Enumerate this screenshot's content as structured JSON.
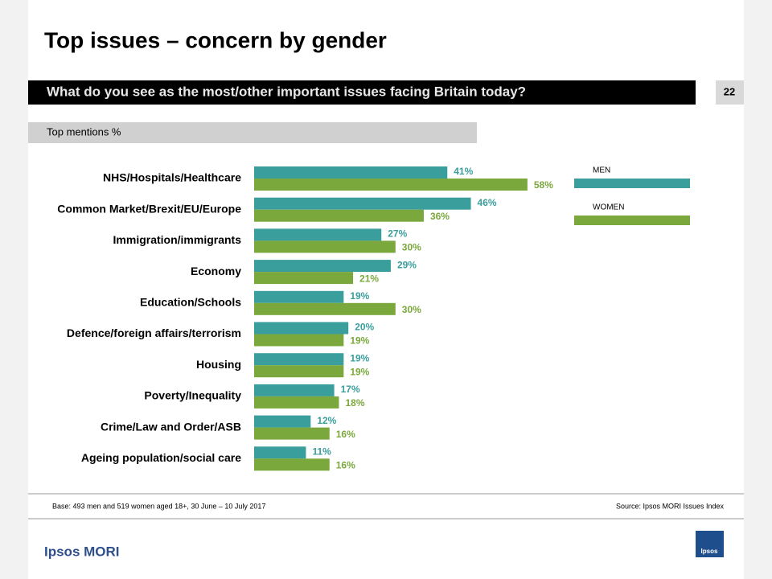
{
  "header": {
    "title": "Top issues – concern by gender",
    "question": "What do you see as the most/other important issues facing Britain today?",
    "page_number": "22",
    "subheading": "Top mentions %"
  },
  "chart_data": {
    "type": "bar",
    "orientation": "horizontal",
    "categories": [
      "NHS/Hospitals/Healthcare",
      "Common Market/Brexit/EU/Europe",
      "Immigration/immigrants",
      "Economy",
      "Education/Schools",
      "Defence/foreign affairs/terrorism",
      "Housing",
      "Poverty/Inequality",
      "Crime/Law and Order/ASB",
      "Ageing population/social care"
    ],
    "series": [
      {
        "name": "MEN",
        "color": "#3a9e9c",
        "values": [
          41,
          46,
          27,
          29,
          19,
          20,
          19,
          17,
          12,
          11
        ],
        "value_labels": [
          "41%",
          "46%",
          "27%",
          "29%",
          "19%",
          "20%",
          "19%",
          "17%",
          "12%",
          "11%"
        ]
      },
      {
        "name": "WOMEN",
        "color": "#7aa83c",
        "values": [
          58,
          36,
          30,
          21,
          30,
          19,
          19,
          18,
          16,
          16
        ],
        "value_labels": [
          "58%",
          "36%",
          "30%",
          "21%",
          "30%",
          "19%",
          "19%",
          "18%",
          "16%",
          "16%"
        ]
      }
    ]
  },
  "footer": {
    "base": "Base: 493 men and 519 women aged 18+, 30 June – 10 July 2017",
    "source": "Source: Ipsos MORI Issues Index",
    "brand": "Ipsos MORI",
    "logo": "Ipsos"
  }
}
